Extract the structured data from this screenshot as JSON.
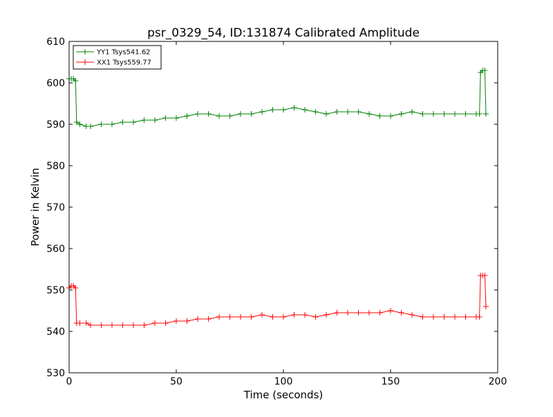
{
  "chart_data": {
    "type": "line",
    "title": "psr_0329_54, ID:131874 Calibrated Amplitude",
    "xlabel": "Time (seconds)",
    "ylabel": "Power in Kelvin",
    "xlim": [
      0,
      200
    ],
    "ylim": [
      530,
      610
    ],
    "x_ticks": [
      0,
      50,
      100,
      150,
      200
    ],
    "y_ticks": [
      530,
      540,
      550,
      560,
      570,
      580,
      590,
      600,
      610
    ],
    "grid": false,
    "legend_position": "top-left",
    "series": [
      {
        "name": "YY1 Tsys541.62",
        "color": "#008000",
        "marker": "+",
        "x": [
          0,
          1,
          2,
          3,
          3.5,
          5,
          8,
          10,
          15,
          20,
          25,
          30,
          35,
          40,
          45,
          50,
          55,
          60,
          65,
          70,
          75,
          80,
          85,
          90,
          95,
          100,
          105,
          110,
          115,
          120,
          125,
          130,
          135,
          140,
          145,
          150,
          155,
          160,
          165,
          170,
          175,
          180,
          185,
          190,
          191.5,
          192,
          193,
          194,
          194.5
        ],
        "y": [
          601,
          601,
          601,
          600.5,
          590.5,
          590,
          589.5,
          589.5,
          590,
          590,
          590.5,
          590.5,
          591,
          591,
          591.5,
          591.5,
          592,
          592.5,
          592.5,
          592,
          592,
          592.5,
          592.5,
          593,
          593.5,
          593.5,
          594,
          593.5,
          593,
          592.5,
          593,
          593,
          593,
          592.5,
          592,
          592,
          592.5,
          593,
          592.5,
          592.5,
          592.5,
          592.5,
          592.5,
          592.5,
          592.5,
          602.5,
          603,
          603,
          592.5
        ]
      },
      {
        "name": "XX1 Tsys559.77",
        "color": "#ff0000",
        "marker": "+",
        "x": [
          0,
          1,
          2,
          3,
          3.5,
          5,
          8,
          10,
          15,
          20,
          25,
          30,
          35,
          40,
          45,
          50,
          55,
          60,
          65,
          70,
          75,
          80,
          85,
          90,
          95,
          100,
          105,
          110,
          115,
          120,
          125,
          130,
          135,
          140,
          145,
          150,
          155,
          160,
          165,
          170,
          175,
          180,
          185,
          190,
          191.5,
          192,
          193,
          194,
          194.5
        ],
        "y": [
          550.5,
          551,
          551,
          550.5,
          542,
          542,
          542,
          541.5,
          541.5,
          541.5,
          541.5,
          541.5,
          541.5,
          542,
          542,
          542.5,
          542.5,
          543,
          543,
          543.5,
          543.5,
          543.5,
          543.5,
          544,
          543.5,
          543.5,
          544,
          544,
          543.5,
          544,
          544.5,
          544.5,
          544.5,
          544.5,
          544.5,
          545,
          544.5,
          544,
          543.5,
          543.5,
          543.5,
          543.5,
          543.5,
          543.5,
          543.5,
          553.5,
          553.5,
          553.5,
          546
        ]
      }
    ]
  }
}
